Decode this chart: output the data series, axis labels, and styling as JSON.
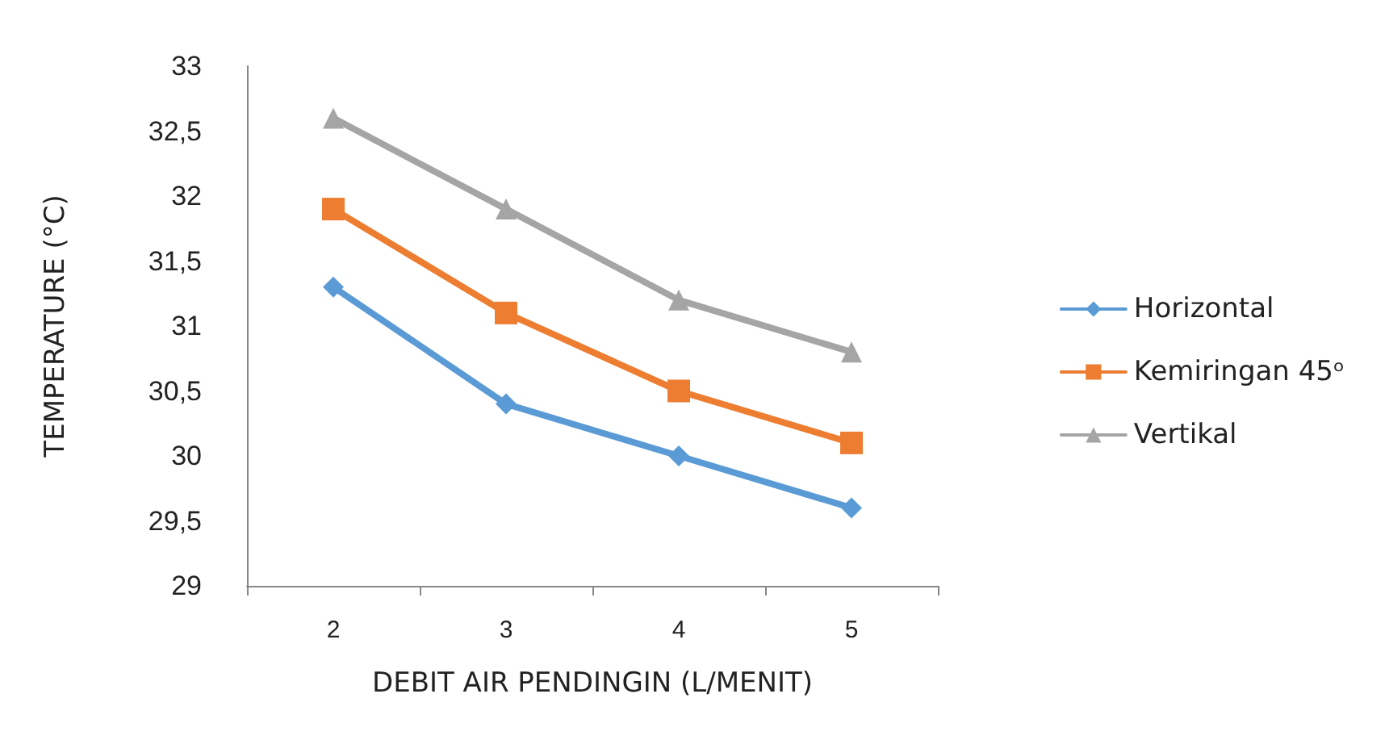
{
  "chart_data": {
    "type": "line",
    "xlabel": "DEBIT AIR PENDINGIN (L/MENIT)",
    "ylabel": "TEMPERATURE (°C)",
    "categories": [
      "2",
      "3",
      "4",
      "5"
    ],
    "series": [
      {
        "name": "Horizontal",
        "color": "#5b9bd5",
        "marker": "diamond",
        "values": [
          31.3,
          30.4,
          30.0,
          29.6
        ]
      },
      {
        "name": "Kemiringan 45ᵒ",
        "color": "#ed7d31",
        "marker": "square",
        "values": [
          31.9,
          31.1,
          30.5,
          30.1
        ]
      },
      {
        "name": "Vertikal",
        "color": "#a5a5a5",
        "marker": "triangle",
        "values": [
          32.6,
          31.9,
          31.2,
          30.8
        ]
      }
    ],
    "ylim": [
      29,
      33
    ],
    "yticks": [
      29,
      {
        "value": 29.5,
        "label": "29,5"
      },
      30,
      {
        "value": 30.5,
        "label": "30,5"
      },
      31,
      {
        "value": 31.5,
        "label": "31,5"
      },
      32,
      {
        "value": 32.5,
        "label": "32,5"
      },
      33
    ],
    "grid": false,
    "legend": "right",
    "line_style": "solid"
  }
}
